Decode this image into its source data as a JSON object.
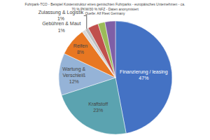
{
  "chart_data": {
    "type": "pie",
    "title": "Fuhrpark-TCO - Beispiel Kostenstruktur eines gemischten Fuhrparks - europäisches Unternehmen - ca.\n70 % PKW/30 % NFZ - Daten anonymisiert\nQuelle: Alf Fleet Germany",
    "categories": [
      "Finanzierung / leasing",
      "Kraftstoff",
      "Wartung &\nVerschleiß",
      "Reifen",
      "Gebühren & Maut",
      "Zulassung & Logistik",
      null,
      null,
      null
    ],
    "values": [
      47,
      23,
      12,
      8,
      1,
      1,
      3,
      2,
      3
    ],
    "value_labels": [
      "47%",
      "23%",
      "12%",
      "8%",
      "1%",
      "1%",
      null,
      null,
      null
    ],
    "colors": [
      "#4472C4",
      "#5BA3B0",
      "#95B3D7",
      "#E87722",
      "#D9D9D9",
      "#BFBFBF",
      "#C0504D",
      "#9BBB59",
      "#7F5FA6"
    ],
    "data_labels": true
  }
}
